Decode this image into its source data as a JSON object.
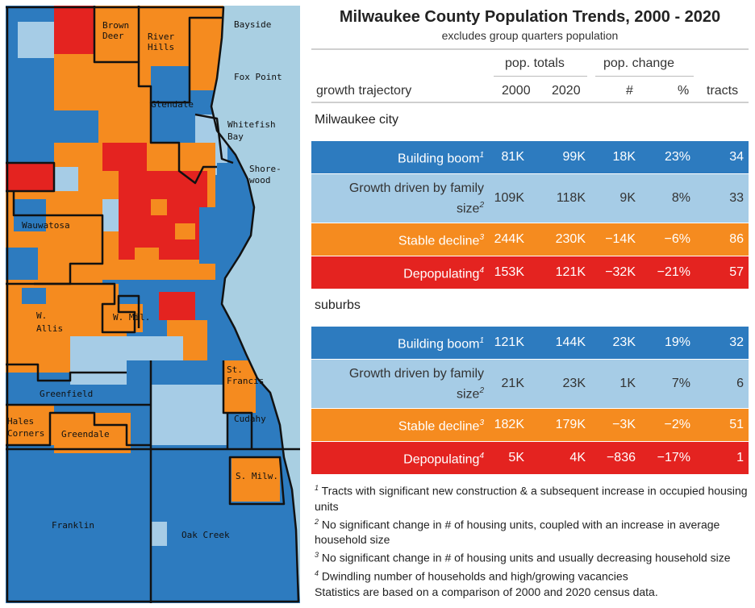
{
  "colors": {
    "building_boom": "#2d7bbf",
    "growth_family": "#a6cce6",
    "stable_decline": "#f58b1f",
    "depopulating": "#e42320",
    "water": "#a9cfe2",
    "border": "#111111"
  },
  "map": {
    "labels": [
      {
        "id": "brown-deer",
        "lines": [
          "Brown",
          "Deer"
        ]
      },
      {
        "id": "river-hills",
        "lines": [
          "River",
          "Hills"
        ]
      },
      {
        "id": "bayside",
        "lines": [
          "Bayside"
        ]
      },
      {
        "id": "fox-point",
        "lines": [
          "Fox Point"
        ]
      },
      {
        "id": "glendale",
        "lines": [
          "Glendale"
        ]
      },
      {
        "id": "whitefish-bay",
        "lines": [
          "Whitefish",
          "Bay"
        ]
      },
      {
        "id": "shorewood",
        "lines": [
          "Shore-",
          "wood"
        ]
      },
      {
        "id": "wauwatosa",
        "lines": [
          "Wauwatosa"
        ]
      },
      {
        "id": "west-allis",
        "lines": [
          "W.",
          "Allis"
        ]
      },
      {
        "id": "west-milwaukee",
        "lines": [
          "W. Mil."
        ]
      },
      {
        "id": "st-francis",
        "lines": [
          "St.",
          "Francis"
        ]
      },
      {
        "id": "greenfield",
        "lines": [
          "Greenfield"
        ]
      },
      {
        "id": "hales-corners",
        "lines": [
          "Hales",
          "Corners"
        ]
      },
      {
        "id": "greendale",
        "lines": [
          "Greendale"
        ]
      },
      {
        "id": "cudahy",
        "lines": [
          "Cudahy"
        ]
      },
      {
        "id": "south-milwaukee",
        "lines": [
          "S. Milw."
        ]
      },
      {
        "id": "franklin",
        "lines": [
          "Franklin"
        ]
      },
      {
        "id": "oak-creek",
        "lines": [
          "Oak Creek"
        ]
      }
    ]
  },
  "table": {
    "title": "Milwaukee County Population Trends, 2000 - 2020",
    "subtitle": "excludes group quarters population",
    "group_headers": {
      "totals": "pop. totals",
      "change": "pop. change"
    },
    "columns": {
      "trajectory": "growth trajectory",
      "y2000": "2000",
      "y2020": "2020",
      "change_num": "#",
      "change_pct": "%",
      "tracts": "tracts"
    },
    "sections": [
      {
        "label": "Milwaukee city",
        "rows": [
          {
            "category": "Building boom",
            "note": "1",
            "color_key": "building_boom",
            "text_color": "#ffffff",
            "y2000": "81K",
            "y2020": "99K",
            "change_num": "18K",
            "change_pct": "23%",
            "tracts": "34"
          },
          {
            "category": "Growth driven by family size",
            "note": "2",
            "color_key": "growth_family",
            "text_color": "#333333",
            "y2000": "109K",
            "y2020": "118K",
            "change_num": "9K",
            "change_pct": "8%",
            "tracts": "33"
          },
          {
            "category": "Stable decline",
            "note": "3",
            "color_key": "stable_decline",
            "text_color": "#ffffff",
            "y2000": "244K",
            "y2020": "230K",
            "change_num": "−14K",
            "change_pct": "−6%",
            "tracts": "86"
          },
          {
            "category": "Depopulating",
            "note": "4",
            "color_key": "depopulating",
            "text_color": "#ffffff",
            "y2000": "153K",
            "y2020": "121K",
            "change_num": "−32K",
            "change_pct": "−21%",
            "tracts": "57"
          }
        ]
      },
      {
        "label": "suburbs",
        "rows": [
          {
            "category": "Building boom",
            "note": "1",
            "color_key": "building_boom",
            "text_color": "#ffffff",
            "y2000": "121K",
            "y2020": "144K",
            "change_num": "23K",
            "change_pct": "19%",
            "tracts": "32"
          },
          {
            "category": "Growth driven by family size",
            "note": "2",
            "color_key": "growth_family",
            "text_color": "#333333",
            "y2000": "21K",
            "y2020": "23K",
            "change_num": "1K",
            "change_pct": "7%",
            "tracts": "6"
          },
          {
            "category": "Stable decline",
            "note": "3",
            "color_key": "stable_decline",
            "text_color": "#ffffff",
            "y2000": "182K",
            "y2020": "179K",
            "change_num": "−3K",
            "change_pct": "−2%",
            "tracts": "51"
          },
          {
            "category": "Depopulating",
            "note": "4",
            "color_key": "depopulating",
            "text_color": "#ffffff",
            "y2000": "5K",
            "y2020": "4K",
            "change_num": "−836",
            "change_pct": "−17%",
            "tracts": "1"
          }
        ]
      }
    ],
    "footnotes": [
      {
        "mark": "1",
        "text": "Tracts with significant new construction & a subsequent increase in occupied housing units"
      },
      {
        "mark": "2",
        "text": "No significant change in # of housing units, coupled with an increase in average household size"
      },
      {
        "mark": "3",
        "text": "No significant change in # of housing units and usually decreasing household size"
      },
      {
        "mark": "4",
        "text": "Dwindling number of households and high/growing vacancies"
      }
    ],
    "source_note": "Statistics are based on a comparison of 2000 and 2020 census data."
  },
  "chart_data": {
    "type": "table",
    "title": "Milwaukee County Population Trends, 2000 - 2020",
    "subtitle": "excludes group quarters population",
    "columns": [
      "growth trajectory",
      "2000",
      "2020",
      "#",
      "%",
      "tracts"
    ],
    "groups": [
      {
        "name": "Milwaukee city",
        "rows": [
          [
            "Building boom",
            81000,
            99000,
            18000,
            23,
            34
          ],
          [
            "Growth driven by family size",
            109000,
            118000,
            9000,
            8,
            33
          ],
          [
            "Stable decline",
            244000,
            230000,
            -14000,
            -6,
            86
          ],
          [
            "Depopulating",
            153000,
            121000,
            -32000,
            -21,
            57
          ]
        ]
      },
      {
        "name": "suburbs",
        "rows": [
          [
            "Building boom",
            121000,
            144000,
            23000,
            19,
            32
          ],
          [
            "Growth driven by family size",
            21000,
            23000,
            1000,
            7,
            6
          ],
          [
            "Stable decline",
            182000,
            179000,
            -3000,
            -2,
            51
          ],
          [
            "Depopulating",
            5000,
            4000,
            -836,
            -17,
            1
          ]
        ]
      }
    ]
  }
}
